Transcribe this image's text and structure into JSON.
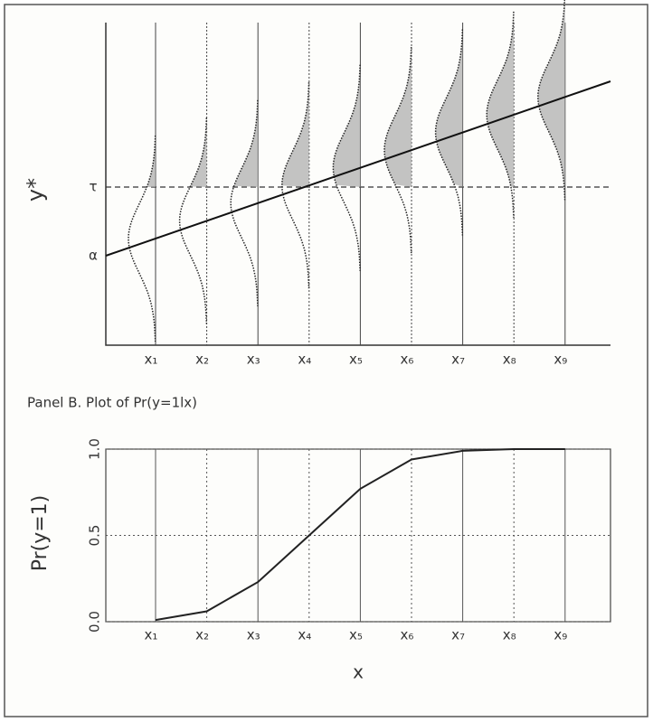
{
  "chart_data": [
    {
      "type": "latent",
      "ylabel": "y*",
      "threshold_label": "τ",
      "intercept_label": "α",
      "categories": [
        "x₁",
        "x₂",
        "x₃",
        "x₄",
        "x₅",
        "x₆",
        "x₇",
        "x₈",
        "x₉"
      ]
    },
    {
      "type": "line",
      "title": "Panel B. Plot of Pr(y=1lx)",
      "ylabel": "Pr(y=1)",
      "xlabel": "x",
      "categories": [
        "x₁",
        "x₂",
        "x₃",
        "x₄",
        "x₅",
        "x₆",
        "x₇",
        "x₈",
        "x₉"
      ],
      "values": [
        0.01,
        0.06,
        0.23,
        0.5,
        0.77,
        0.94,
        0.99,
        1.0,
        1.0
      ],
      "color": "#222",
      "ylim": [
        0,
        1
      ],
      "yticks": [
        {
          "value": 0,
          "label": "0.0"
        },
        {
          "value": 0.5,
          "label": "0.5"
        },
        {
          "value": 1,
          "label": "1.0"
        }
      ],
      "grid": true
    }
  ]
}
